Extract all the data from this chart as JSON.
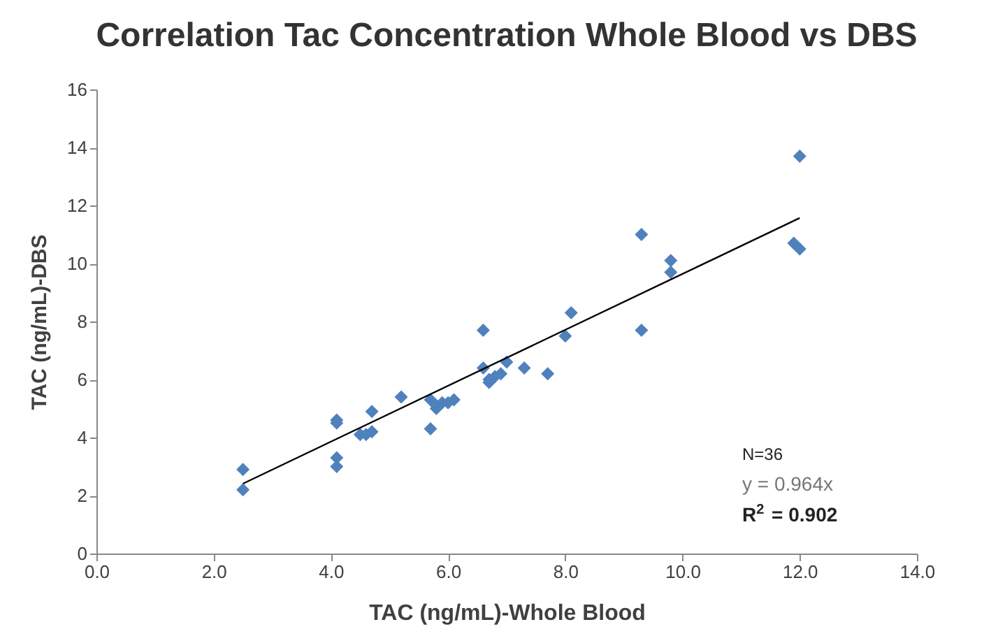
{
  "chart_data": {
    "type": "scatter",
    "title": "Correlation Tac Concentration Whole Blood vs DBS",
    "xlabel": "TAC (ng/mL)-Whole Blood",
    "ylabel": "TAC (ng/mL)-DBS",
    "xlim": [
      0,
      14
    ],
    "xticks": [
      {
        "value": 0,
        "label": "0.0"
      },
      {
        "value": 2,
        "label": "2.0"
      },
      {
        "value": 4,
        "label": "4.0"
      },
      {
        "value": 6,
        "label": "6.0"
      },
      {
        "value": 8,
        "label": "8.0"
      },
      {
        "value": 10,
        "label": "10.0"
      },
      {
        "value": 12,
        "label": "12.0"
      },
      {
        "value": 14,
        "label": "14.0"
      }
    ],
    "ylim": [
      0,
      16
    ],
    "yticks": [
      0,
      2,
      4,
      6,
      8,
      10,
      12,
      14,
      16
    ],
    "grid": false,
    "legend": false,
    "series": [
      {
        "color": "#4f81bd",
        "marker": "diamond",
        "x": [
          2.5,
          2.5,
          4.1,
          4.1,
          4.1,
          4.1,
          4.5,
          4.6,
          4.7,
          4.7,
          5.2,
          5.7,
          5.7,
          5.8,
          5.8,
          5.9,
          6.0,
          6.1,
          6.6,
          6.6,
          6.7,
          6.7,
          6.8,
          6.9,
          7.0,
          7.3,
          7.7,
          8.0,
          8.1,
          9.3,
          9.3,
          9.8,
          9.8,
          11.9,
          12.0,
          12.0
        ],
        "values": [
          2.9,
          2.2,
          4.6,
          4.5,
          3.3,
          3.0,
          4.1,
          4.1,
          4.2,
          4.9,
          5.4,
          5.3,
          4.3,
          5.0,
          5.1,
          5.2,
          5.2,
          5.3,
          7.7,
          6.4,
          5.9,
          6.0,
          6.1,
          6.2,
          6.6,
          6.4,
          6.2,
          7.5,
          8.3,
          11.0,
          7.7,
          10.1,
          9.7,
          10.7,
          10.5,
          13.7
        ]
      },
      {
        "type": "line",
        "color": "#000000",
        "line_style": "solid",
        "x": [
          2.5,
          12
        ],
        "values": [
          2.41,
          11.57
        ]
      }
    ],
    "annotations": [
      "N=36",
      "y = 0.964x",
      "R$^{2}$ = 0.902"
    ]
  }
}
